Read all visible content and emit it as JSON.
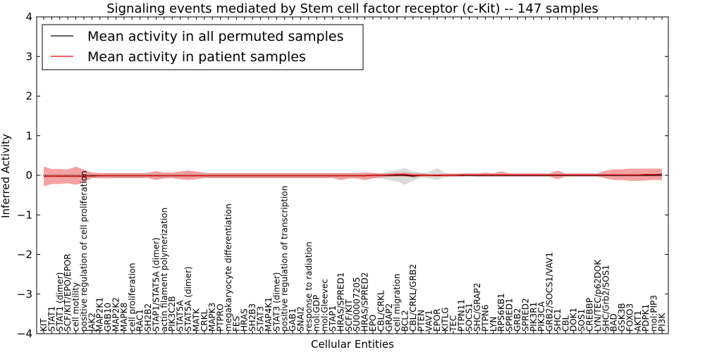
{
  "chart_data": {
    "type": "line",
    "title": "Signaling events mediated by Stem cell factor receptor (c-Kit) -- 147 samples",
    "xlabel": "Cellular Entities",
    "ylabel": "Inferred Activity",
    "ylim": [
      -4,
      4
    ],
    "yticks": [
      "4",
      "3",
      "2",
      "1",
      "0",
      "−1",
      "−2",
      "−3",
      "−4"
    ],
    "legend": {
      "position": "top-left",
      "entries": [
        {
          "label": "Mean activity in all permuted samples",
          "color": "#000000"
        },
        {
          "label": "Mean activity in patient samples",
          "color": "#e00000"
        }
      ]
    },
    "categories": [
      "KIT",
      "STAT1",
      "STAT1 (dimer)",
      "SCF/KIT/EPO/EPOR",
      "cell motility",
      "positive regulation of cell proliferation",
      "JAK2",
      "MAP2K1",
      "GRB10",
      "MAP2K2",
      "MAPK8",
      "cell proliferation",
      "RAC1",
      "SH2B2",
      "STAP1/STAT5A (dimer)",
      "actin filament polymerization",
      "PIK3C2B",
      "STAT5A",
      "STAT5A (dimer)",
      "MATK",
      "CRKL",
      "MAPK3",
      "PTPRO",
      "megakaryocyte differentiation",
      "FES",
      "HRAS",
      "SH2B3",
      "STAT3",
      "MAP4K1",
      "STAT3 (dimer)",
      "positive regulation of transcription",
      "GAB1",
      "SNAI2",
      "response to radiation",
      "mol:GDP",
      "mol:Gleevec",
      "STAP1",
      "HRAS/SPRED1",
      "SCF/KIT",
      "SU00007205",
      "HRAS/SPRED2",
      "EPO",
      "CBL/CRKL",
      "GRAP2",
      "cell migration",
      "BCL2",
      "CBL/CRKL/GRB2",
      "PTEN",
      "VAV1",
      "EPOR",
      "KITLG",
      "TEC",
      "PTPN11",
      "SOCS1",
      "SHC/GRAP2",
      "PTPN6",
      "LYN",
      "RPS6KB1",
      "SPRED1",
      "GRB2",
      "SPRED2",
      "PIK3R1",
      "PIK3CA",
      "GRB2/SOCS1/VAV1",
      "SHC1",
      "CBL",
      "DOK1",
      "SOS1",
      "CREBBP",
      "LYN/TEC/p62DOK",
      "SHC/Grb2/SOS1",
      "BAD",
      "GSK3B",
      "FOXO3",
      "AKT1",
      "PDPK1",
      "mol:PIP3",
      "PI3K"
    ],
    "series": [
      {
        "name": "Mean activity in patient samples",
        "color": "#e00000",
        "values": [
          -0.02,
          -0.02,
          -0.02,
          -0.02,
          -0.02,
          -0.02,
          -0.02,
          -0.01,
          -0.01,
          -0.01,
          -0.01,
          -0.01,
          -0.01,
          -0.01,
          -0.01,
          -0.01,
          -0.01,
          -0.01,
          -0.01,
          -0.01,
          -0.01,
          -0.01,
          -0.01,
          -0.01,
          -0.01,
          -0.01,
          -0.01,
          -0.01,
          -0.01,
          -0.01,
          -0.01,
          -0.01,
          -0.01,
          -0.01,
          -0.01,
          -0.01,
          -0.01,
          -0.01,
          -0.01,
          -0.01,
          -0.01,
          0.0,
          0.0,
          0.01,
          0.02,
          0.02,
          0.0,
          0.0,
          0.0,
          0.0,
          0.0,
          0.0,
          0.01,
          0.01,
          0.01,
          0.01,
          0.01,
          0.01,
          0.01,
          0.01,
          0.01,
          0.01,
          0.01,
          0.01,
          0.01,
          0.01,
          0.01,
          0.01,
          0.01,
          0.01,
          0.01,
          0.01,
          0.01,
          0.01,
          0.01,
          0.02,
          0.02,
          0.03
        ],
        "lower": [
          -0.28,
          -0.22,
          -0.22,
          -0.2,
          -0.24,
          -0.18,
          -0.07,
          -0.07,
          -0.08,
          -0.07,
          -0.07,
          -0.07,
          -0.07,
          -0.07,
          -0.12,
          -0.08,
          -0.07,
          -0.1,
          -0.12,
          -0.1,
          -0.07,
          -0.07,
          -0.07,
          -0.07,
          -0.07,
          -0.07,
          -0.07,
          -0.07,
          -0.07,
          -0.07,
          -0.07,
          -0.07,
          -0.07,
          -0.07,
          -0.07,
          -0.07,
          -0.07,
          -0.12,
          -0.08,
          -0.08,
          -0.12,
          -0.08,
          -0.05,
          -0.04,
          -0.03,
          -0.03,
          -0.05,
          -0.03,
          -0.03,
          -0.03,
          -0.03,
          -0.03,
          -0.03,
          -0.02,
          -0.03,
          -0.03,
          -0.03,
          -0.03,
          -0.03,
          -0.03,
          -0.03,
          -0.03,
          -0.03,
          -0.03,
          -0.1,
          -0.03,
          -0.03,
          -0.03,
          -0.03,
          -0.03,
          -0.08,
          -0.12,
          -0.12,
          -0.14,
          -0.14,
          -0.13,
          -0.12,
          -0.12
        ],
        "upper": [
          0.22,
          0.16,
          0.16,
          0.15,
          0.22,
          0.14,
          0.07,
          0.06,
          0.06,
          0.06,
          0.06,
          0.06,
          0.06,
          0.06,
          0.11,
          0.07,
          0.07,
          0.1,
          0.12,
          0.1,
          0.06,
          0.06,
          0.06,
          0.06,
          0.06,
          0.06,
          0.06,
          0.06,
          0.06,
          0.06,
          0.06,
          0.06,
          0.06,
          0.06,
          0.06,
          0.06,
          0.06,
          0.06,
          0.06,
          0.06,
          0.07,
          0.06,
          0.04,
          0.05,
          0.06,
          0.07,
          0.05,
          0.05,
          0.03,
          0.03,
          0.04,
          0.04,
          0.05,
          0.05,
          0.05,
          0.07,
          0.05,
          0.1,
          0.05,
          0.05,
          0.05,
          0.05,
          0.05,
          0.05,
          0.12,
          0.05,
          0.05,
          0.05,
          0.05,
          0.05,
          0.12,
          0.15,
          0.15,
          0.17,
          0.17,
          0.17,
          0.17,
          0.17
        ]
      },
      {
        "name": "Mean activity in all permuted samples",
        "color": "#000000",
        "values": [
          -0.02,
          -0.02,
          -0.02,
          -0.02,
          -0.02,
          -0.02,
          -0.01,
          -0.01,
          -0.01,
          -0.01,
          -0.01,
          -0.01,
          -0.01,
          -0.01,
          -0.01,
          -0.01,
          -0.01,
          -0.01,
          -0.01,
          -0.01,
          -0.01,
          -0.01,
          -0.01,
          -0.01,
          -0.01,
          -0.01,
          -0.01,
          -0.01,
          -0.01,
          -0.01,
          -0.01,
          -0.01,
          -0.01,
          -0.01,
          -0.01,
          -0.01,
          -0.01,
          -0.01,
          -0.01,
          -0.01,
          -0.01,
          0.0,
          0.0,
          0.0,
          0.0,
          0.0,
          -0.02,
          0.0,
          0.0,
          -0.01,
          0.0,
          0.0,
          0.0,
          0.0,
          0.0,
          0.0,
          0.0,
          0.0,
          0.0,
          0.0,
          0.0,
          0.0,
          0.0,
          0.0,
          0.0,
          0.0,
          0.0,
          0.0,
          0.0,
          0.0,
          0.0,
          0.0,
          0.0,
          0.0,
          0.0,
          0.0,
          0.0,
          0.0
        ],
        "lower": [
          -0.06,
          -0.06,
          -0.06,
          -0.06,
          -0.06,
          -0.06,
          -0.05,
          -0.05,
          -0.05,
          -0.05,
          -0.05,
          -0.05,
          -0.05,
          -0.05,
          -0.05,
          -0.05,
          -0.05,
          -0.05,
          -0.05,
          -0.05,
          -0.05,
          -0.05,
          -0.05,
          -0.05,
          -0.05,
          -0.05,
          -0.05,
          -0.05,
          -0.05,
          -0.05,
          -0.05,
          -0.05,
          -0.05,
          -0.05,
          -0.05,
          -0.05,
          -0.05,
          -0.05,
          -0.05,
          -0.05,
          -0.05,
          -0.06,
          -0.08,
          -0.12,
          -0.16,
          -0.24,
          -0.14,
          -0.06,
          -0.08,
          -0.12,
          -0.05,
          -0.04,
          -0.04,
          -0.04,
          -0.04,
          -0.04,
          -0.04,
          -0.04,
          -0.04,
          -0.04,
          -0.04,
          -0.04,
          -0.04,
          -0.04,
          -0.04,
          -0.04,
          -0.04,
          -0.04,
          -0.04,
          -0.04,
          -0.04,
          -0.04,
          -0.04,
          -0.04,
          -0.04,
          -0.04,
          -0.04,
          -0.04
        ],
        "upper": [
          0.03,
          0.03,
          0.03,
          0.03,
          0.03,
          0.03,
          0.04,
          0.04,
          0.04,
          0.04,
          0.04,
          0.04,
          0.04,
          0.04,
          0.04,
          0.04,
          0.04,
          0.04,
          0.04,
          0.04,
          0.04,
          0.04,
          0.04,
          0.04,
          0.04,
          0.04,
          0.04,
          0.04,
          0.04,
          0.04,
          0.04,
          0.04,
          0.04,
          0.04,
          0.04,
          0.04,
          0.04,
          0.04,
          0.04,
          0.04,
          0.04,
          0.05,
          0.06,
          0.1,
          0.14,
          0.18,
          0.1,
          0.06,
          0.08,
          0.18,
          0.06,
          0.04,
          0.04,
          0.04,
          0.04,
          0.04,
          0.04,
          0.04,
          0.04,
          0.04,
          0.04,
          0.04,
          0.04,
          0.04,
          0.04,
          0.04,
          0.04,
          0.04,
          0.04,
          0.04,
          0.04,
          0.04,
          0.04,
          0.04,
          0.04,
          0.04,
          0.04,
          0.04
        ]
      }
    ]
  }
}
